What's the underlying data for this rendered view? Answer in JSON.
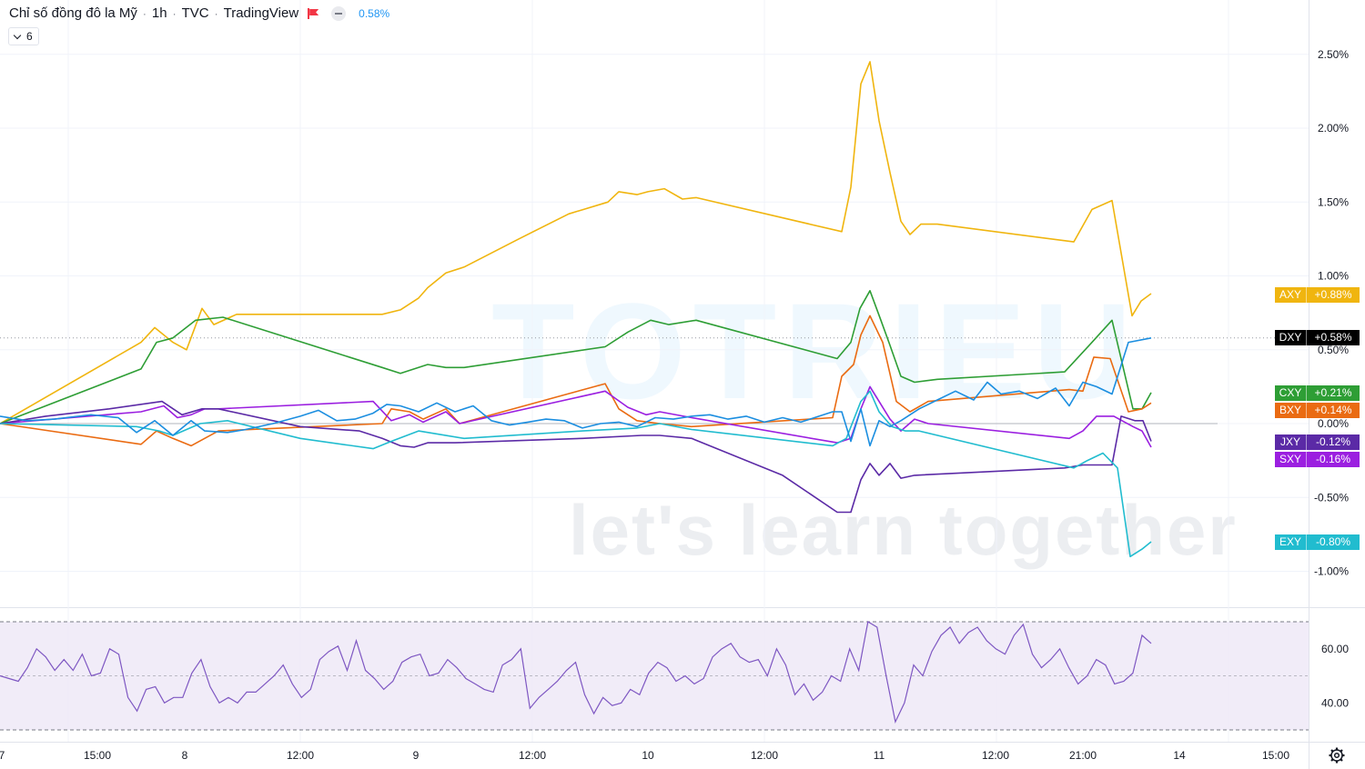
{
  "header": {
    "title": "Chỉ số đồng đô la Mỹ",
    "interval": "1h",
    "exchange": "TVC",
    "source": "TradingView",
    "change": "0.58%",
    "collapsed_count": "6"
  },
  "watermark": {
    "brand": "TOTRIEU",
    "tagline": "let's learn together"
  },
  "colors": {
    "AXY": "#f0b50f",
    "DXY": "#000000",
    "CXY": "#2e9e35",
    "BXY": "#ea6b12",
    "JXY": "#5b2aa6",
    "SXY": "#9b1fe0",
    "EXY": "#21bccf",
    "blue_line": "#1b8ee0",
    "rsi": "#7e57c2",
    "rsi_band": "#ede7f6"
  },
  "chart_data": {
    "type": "line",
    "title": "Chỉ số đồng đô la Mỹ",
    "x_labels": [
      "7",
      "15:00",
      "8",
      "12:00",
      "9",
      "12:00",
      "10",
      "12:00",
      "11",
      "12:00",
      "21:00",
      "14",
      "15:00"
    ],
    "y_ticks": [
      "2.50%",
      "2.00%",
      "1.50%",
      "1.00%",
      "0.50%",
      "0.00%",
      "-0.50%",
      "-1.00%"
    ],
    "ylim": [
      -1.25,
      2.75
    ],
    "grid": true,
    "series": [
      {
        "name": "AXY",
        "final_label": "+0.88%",
        "points": [
          [
            0,
            0
          ],
          [
            155,
            0.55
          ],
          [
            170,
            0.65
          ],
          [
            190,
            0.55
          ],
          [
            205,
            0.5
          ],
          [
            222,
            0.78
          ],
          [
            235,
            0.67
          ],
          [
            260,
            0.74
          ],
          [
            330,
            0.74
          ],
          [
            420,
            0.74
          ],
          [
            440,
            0.77
          ],
          [
            460,
            0.85
          ],
          [
            470,
            0.92
          ],
          [
            490,
            1.02
          ],
          [
            510,
            1.06
          ],
          [
            570,
            1.25
          ],
          [
            625,
            1.42
          ],
          [
            668,
            1.5
          ],
          [
            680,
            1.57
          ],
          [
            700,
            1.55
          ],
          [
            712,
            1.57
          ],
          [
            730,
            1.59
          ],
          [
            750,
            1.52
          ],
          [
            765,
            1.53
          ],
          [
            925,
            1.3
          ],
          [
            935,
            1.6
          ],
          [
            946,
            2.3
          ],
          [
            956,
            2.45
          ],
          [
            966,
            2.05
          ],
          [
            978,
            1.7
          ],
          [
            990,
            1.37
          ],
          [
            1000,
            1.28
          ],
          [
            1012,
            1.35
          ],
          [
            1030,
            1.35
          ],
          [
            1180,
            1.23
          ],
          [
            1200,
            1.45
          ],
          [
            1222,
            1.51
          ],
          [
            1244,
            0.73
          ],
          [
            1254,
            0.83
          ],
          [
            1265,
            0.88
          ]
        ]
      },
      {
        "name": "CXY",
        "final_label": "+0.21%",
        "points": [
          [
            0,
            0
          ],
          [
            155,
            0.37
          ],
          [
            172,
            0.55
          ],
          [
            190,
            0.58
          ],
          [
            215,
            0.7
          ],
          [
            245,
            0.72
          ],
          [
            420,
            0.38
          ],
          [
            440,
            0.34
          ],
          [
            470,
            0.4
          ],
          [
            490,
            0.38
          ],
          [
            510,
            0.38
          ],
          [
            665,
            0.52
          ],
          [
            690,
            0.62
          ],
          [
            715,
            0.7
          ],
          [
            735,
            0.67
          ],
          [
            765,
            0.7
          ],
          [
            920,
            0.44
          ],
          [
            935,
            0.55
          ],
          [
            945,
            0.78
          ],
          [
            956,
            0.9
          ],
          [
            968,
            0.7
          ],
          [
            978,
            0.53
          ],
          [
            990,
            0.32
          ],
          [
            1005,
            0.28
          ],
          [
            1030,
            0.3
          ],
          [
            1170,
            0.35
          ],
          [
            1200,
            0.55
          ],
          [
            1222,
            0.7
          ],
          [
            1245,
            0.1
          ],
          [
            1255,
            0.1
          ],
          [
            1265,
            0.21
          ]
        ]
      },
      {
        "name": "BXY",
        "final_label": "+0.14%",
        "points": [
          [
            0,
            0
          ],
          [
            155,
            -0.14
          ],
          [
            172,
            -0.05
          ],
          [
            190,
            -0.1
          ],
          [
            210,
            -0.15
          ],
          [
            240,
            -0.05
          ],
          [
            420,
            0
          ],
          [
            430,
            0.1
          ],
          [
            450,
            0.08
          ],
          [
            465,
            0.03
          ],
          [
            490,
            0.1
          ],
          [
            505,
            0
          ],
          [
            665,
            0.27
          ],
          [
            680,
            0.1
          ],
          [
            700,
            0.02
          ],
          [
            725,
            0
          ],
          [
            760,
            -0.02
          ],
          [
            915,
            0.04
          ],
          [
            925,
            0.32
          ],
          [
            938,
            0.4
          ],
          [
            946,
            0.6
          ],
          [
            956,
            0.73
          ],
          [
            970,
            0.55
          ],
          [
            985,
            0.15
          ],
          [
            1000,
            0.08
          ],
          [
            1020,
            0.15
          ],
          [
            1175,
            0.23
          ],
          [
            1190,
            0.22
          ],
          [
            1202,
            0.45
          ],
          [
            1220,
            0.44
          ],
          [
            1240,
            0.08
          ],
          [
            1255,
            0.1
          ],
          [
            1265,
            0.14
          ]
        ]
      },
      {
        "name": "SXY",
        "final_label": "-0.16%",
        "points": [
          [
            0,
            0
          ],
          [
            155,
            0.08
          ],
          [
            180,
            0.12
          ],
          [
            195,
            0.04
          ],
          [
            210,
            0.06
          ],
          [
            225,
            0.1
          ],
          [
            240,
            0.1
          ],
          [
            410,
            0.15
          ],
          [
            430,
            0.02
          ],
          [
            450,
            0.06
          ],
          [
            465,
            0.01
          ],
          [
            490,
            0.08
          ],
          [
            505,
            0
          ],
          [
            665,
            0.22
          ],
          [
            690,
            0.11
          ],
          [
            710,
            0.06
          ],
          [
            725,
            0.08
          ],
          [
            760,
            0.04
          ],
          [
            920,
            -0.13
          ],
          [
            935,
            -0.1
          ],
          [
            946,
            0.1
          ],
          [
            956,
            0.25
          ],
          [
            966,
            0.15
          ],
          [
            978,
            0.03
          ],
          [
            990,
            -0.05
          ],
          [
            1005,
            0.03
          ],
          [
            1020,
            0
          ],
          [
            1175,
            -0.1
          ],
          [
            1190,
            -0.05
          ],
          [
            1205,
            0.05
          ],
          [
            1224,
            0.05
          ],
          [
            1245,
            -0.02
          ],
          [
            1255,
            -0.05
          ],
          [
            1265,
            -0.16
          ]
        ]
      },
      {
        "name": "JXY",
        "final_label": "-0.12%",
        "points": [
          [
            0,
            0
          ],
          [
            50,
            0.05
          ],
          [
            120,
            0.1
          ],
          [
            178,
            0.15
          ],
          [
            200,
            0.06
          ],
          [
            222,
            0.1
          ],
          [
            240,
            0.1
          ],
          [
            330,
            -0.02
          ],
          [
            395,
            -0.05
          ],
          [
            420,
            -0.1
          ],
          [
            440,
            -0.15
          ],
          [
            455,
            -0.16
          ],
          [
            470,
            -0.13
          ],
          [
            500,
            -0.13
          ],
          [
            640,
            -0.1
          ],
          [
            705,
            -0.08
          ],
          [
            725,
            -0.08
          ],
          [
            760,
            -0.1
          ],
          [
            860,
            -0.35
          ],
          [
            920,
            -0.6
          ],
          [
            935,
            -0.6
          ],
          [
            946,
            -0.38
          ],
          [
            956,
            -0.27
          ],
          [
            966,
            -0.35
          ],
          [
            978,
            -0.27
          ],
          [
            990,
            -0.37
          ],
          [
            1005,
            -0.35
          ],
          [
            1170,
            -0.3
          ],
          [
            1190,
            -0.28
          ],
          [
            1222,
            -0.28
          ],
          [
            1232,
            0.05
          ],
          [
            1247,
            0.02
          ],
          [
            1256,
            0.02
          ],
          [
            1265,
            -0.12
          ]
        ]
      },
      {
        "name": "EXY",
        "final_label": "-0.80%",
        "points": [
          [
            0,
            0
          ],
          [
            150,
            -0.02
          ],
          [
            175,
            -0.05
          ],
          [
            190,
            -0.08
          ],
          [
            220,
            0
          ],
          [
            250,
            0.02
          ],
          [
            330,
            -0.1
          ],
          [
            410,
            -0.17
          ],
          [
            430,
            -0.12
          ],
          [
            460,
            -0.05
          ],
          [
            510,
            -0.1
          ],
          [
            640,
            -0.05
          ],
          [
            700,
            -0.03
          ],
          [
            725,
            0
          ],
          [
            760,
            -0.04
          ],
          [
            915,
            -0.15
          ],
          [
            930,
            -0.1
          ],
          [
            946,
            0.15
          ],
          [
            956,
            0.22
          ],
          [
            966,
            0.08
          ],
          [
            980,
            -0.02
          ],
          [
            995,
            -0.05
          ],
          [
            1010,
            -0.05
          ],
          [
            1180,
            -0.3
          ],
          [
            1195,
            -0.25
          ],
          [
            1212,
            -0.2
          ],
          [
            1228,
            -0.3
          ],
          [
            1242,
            -0.9
          ],
          [
            1255,
            -0.85
          ],
          [
            1265,
            -0.8
          ]
        ]
      },
      {
        "name": "",
        "final_label": "",
        "points": [
          [
            0,
            0.05
          ],
          [
            30,
            0.02
          ],
          [
            60,
            0.03
          ],
          [
            100,
            0.06
          ],
          [
            130,
            0.04
          ],
          [
            150,
            -0.06
          ],
          [
            170,
            0.02
          ],
          [
            190,
            -0.08
          ],
          [
            210,
            0.02
          ],
          [
            225,
            -0.05
          ],
          [
            250,
            -0.06
          ],
          [
            270,
            -0.04
          ],
          [
            300,
            0
          ],
          [
            330,
            0.05
          ],
          [
            350,
            0.09
          ],
          [
            370,
            0.02
          ],
          [
            390,
            0.03
          ],
          [
            410,
            0.07
          ],
          [
            425,
            0.13
          ],
          [
            440,
            0.12
          ],
          [
            460,
            0.08
          ],
          [
            480,
            0.14
          ],
          [
            500,
            0.08
          ],
          [
            520,
            0.12
          ],
          [
            540,
            0.02
          ],
          [
            560,
            -0.01
          ],
          [
            580,
            0.01
          ],
          [
            600,
            0.03
          ],
          [
            620,
            0.02
          ],
          [
            640,
            -0.03
          ],
          [
            660,
            0
          ],
          [
            680,
            0.01
          ],
          [
            700,
            -0.02
          ],
          [
            720,
            0.04
          ],
          [
            740,
            0.03
          ],
          [
            760,
            0.05
          ],
          [
            780,
            0.06
          ],
          [
            800,
            0.03
          ],
          [
            820,
            0.05
          ],
          [
            840,
            0.01
          ],
          [
            860,
            0.04
          ],
          [
            880,
            0.01
          ],
          [
            900,
            0.05
          ],
          [
            915,
            0.08
          ],
          [
            925,
            0.08
          ],
          [
            935,
            -0.12
          ],
          [
            946,
            0.1
          ],
          [
            956,
            -0.15
          ],
          [
            966,
            0.02
          ],
          [
            978,
            -0.02
          ],
          [
            990,
            0.02
          ],
          [
            1010,
            0.1
          ],
          [
            1030,
            0.16
          ],
          [
            1050,
            0.22
          ],
          [
            1070,
            0.16
          ],
          [
            1085,
            0.28
          ],
          [
            1100,
            0.2
          ],
          [
            1120,
            0.22
          ],
          [
            1140,
            0.17
          ],
          [
            1160,
            0.24
          ],
          [
            1175,
            0.12
          ],
          [
            1190,
            0.28
          ],
          [
            1205,
            0.25
          ],
          [
            1222,
            0.2
          ],
          [
            1240,
            0.55
          ],
          [
            1265,
            0.58
          ]
        ]
      }
    ],
    "rsi": {
      "ticks": [
        "60.00",
        "40.00"
      ],
      "levels": [
        70,
        30
      ],
      "ylim": [
        25,
        80
      ],
      "values": [
        50,
        49,
        48,
        53,
        60,
        57,
        52,
        56,
        52,
        58,
        50,
        51,
        60,
        58,
        42,
        37,
        45,
        46,
        40,
        42,
        42,
        51,
        56,
        46,
        40,
        42,
        40,
        44,
        44,
        47,
        50,
        54,
        47,
        42,
        45,
        56,
        59,
        61,
        52,
        63,
        52,
        49,
        45,
        48,
        55,
        57,
        58,
        50,
        51,
        56,
        53,
        49,
        47,
        45,
        44,
        54,
        56,
        60,
        38,
        42,
        45,
        48,
        52,
        55,
        43,
        36,
        42,
        39,
        40,
        45,
        43,
        51,
        55,
        53,
        48,
        50,
        47,
        49,
        57,
        60,
        62,
        57,
        55,
        56,
        50,
        60,
        54,
        43,
        47,
        41,
        44,
        50,
        48,
        60,
        52,
        70,
        68,
        50,
        33,
        40,
        54,
        50,
        59,
        65,
        68,
        62,
        66,
        68,
        63,
        60,
        58,
        65,
        69,
        58,
        53,
        56,
        60,
        53,
        47,
        50,
        56,
        54,
        47,
        48,
        51,
        65,
        62
      ]
    }
  },
  "right_tags": [
    {
      "sym": "AXY",
      "val": "+0.88%",
      "bg": "#f0b50f"
    },
    {
      "sym": "DXY",
      "val": "+0.58%",
      "bg": "#000000"
    },
    {
      "sym": "CXY",
      "val": "+0.21%",
      "bg": "#2e9e35"
    },
    {
      "sym": "BXY",
      "val": "+0.14%",
      "bg": "#ea6b12"
    },
    {
      "sym": "JXY",
      "val": "-0.12%",
      "bg": "#5b2aa6"
    },
    {
      "sym": "SXY",
      "val": "-0.16%",
      "bg": "#9b1fe0"
    },
    {
      "sym": "EXY",
      "val": "-0.80%",
      "bg": "#21bccf"
    }
  ]
}
